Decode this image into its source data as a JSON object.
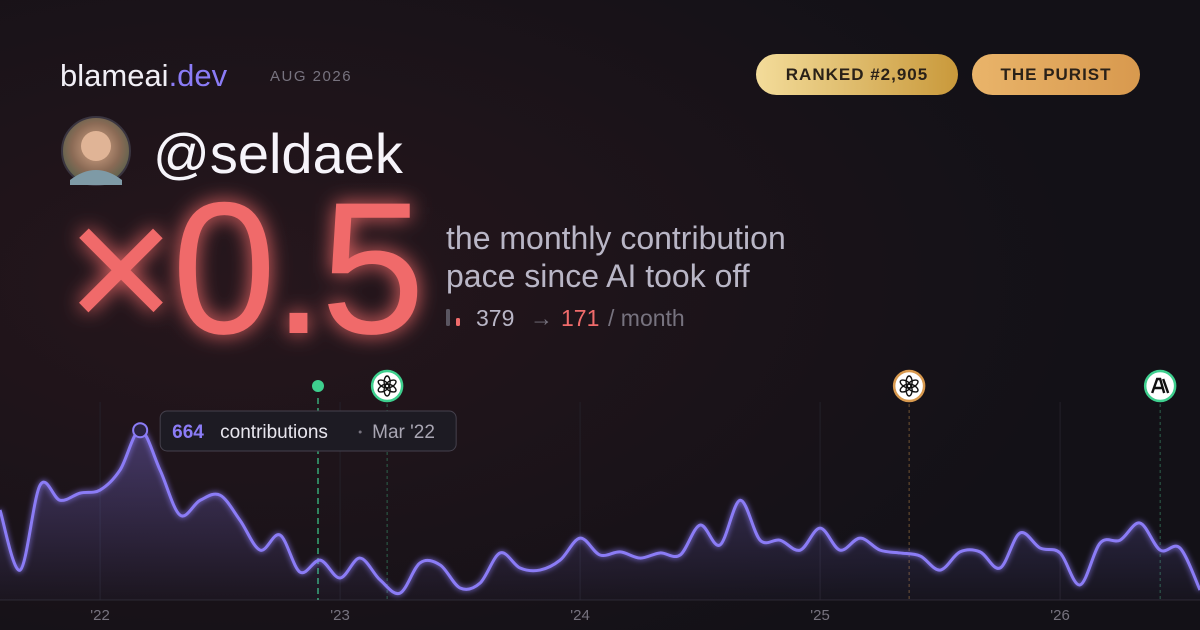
{
  "brand": {
    "name": "blameai",
    "tld": ".dev",
    "date": "AUG 2026"
  },
  "badges": [
    "RANKED #2,905",
    "THE PURIST"
  ],
  "user": {
    "handle": "@seldaek"
  },
  "headline": {
    "multiplier": "×0.5",
    "description": [
      "the monthly contribution",
      "pace since AI took off"
    ]
  },
  "stats": {
    "before": "379",
    "arrow": "→",
    "after": "171",
    "unit": "/ month"
  },
  "tooltip": {
    "unit": "contributions",
    "label": "Mar '22",
    "index": 7
  },
  "chart_data": {
    "type": "line",
    "x": [
      2021.583,
      2021.667,
      2021.75,
      2021.833,
      2021.917,
      2022.0,
      2022.083,
      2022.167,
      2022.25,
      2022.333,
      2022.417,
      2022.5,
      2022.583,
      2022.667,
      2022.75,
      2022.833,
      2022.917,
      2023.0,
      2023.083,
      2023.167,
      2023.25,
      2023.333,
      2023.417,
      2023.5,
      2023.583,
      2023.667,
      2023.75,
      2023.833,
      2023.917,
      2024.0,
      2024.083,
      2024.167,
      2024.25,
      2024.333,
      2024.417,
      2024.5,
      2024.583,
      2024.667,
      2024.75,
      2024.833,
      2024.917,
      2025.0,
      2025.083,
      2025.167,
      2025.25,
      2025.333,
      2025.417,
      2025.5,
      2025.583,
      2025.667,
      2025.75,
      2025.833,
      2025.917,
      2026.0,
      2026.083,
      2026.167,
      2026.25,
      2026.333,
      2026.417,
      2026.5,
      2026.583
    ],
    "series": [
      {
        "name": "contributions",
        "color": "#8b7cf6",
        "values": [
          352,
          117,
          449,
          390,
          418,
          430,
          508,
          664,
          508,
          332,
          390,
          410,
          312,
          195,
          254,
          109,
          156,
          86,
          164,
          78,
          27,
          145,
          137,
          47,
          66,
          184,
          125,
          117,
          156,
          242,
          176,
          188,
          164,
          184,
          176,
          293,
          215,
          390,
          234,
          234,
          195,
          281,
          195,
          242,
          195,
          184,
          172,
          117,
          188,
          188,
          125,
          262,
          203,
          184,
          59,
          223,
          234,
          301,
          195,
          203,
          39
        ]
      }
    ],
    "xlim": [
      2021.583,
      2026.583
    ],
    "ylim": [
      0,
      700
    ],
    "xticks": [
      {
        "value": 2022,
        "label": "'22"
      },
      {
        "value": 2023,
        "label": "'23"
      },
      {
        "value": 2024,
        "label": "'24"
      },
      {
        "value": 2025,
        "label": "'25"
      },
      {
        "value": 2026,
        "label": "'26"
      }
    ],
    "events_x": [
      2022.908,
      2023.196,
      2025.371,
      2026.417
    ],
    "grid": true
  }
}
